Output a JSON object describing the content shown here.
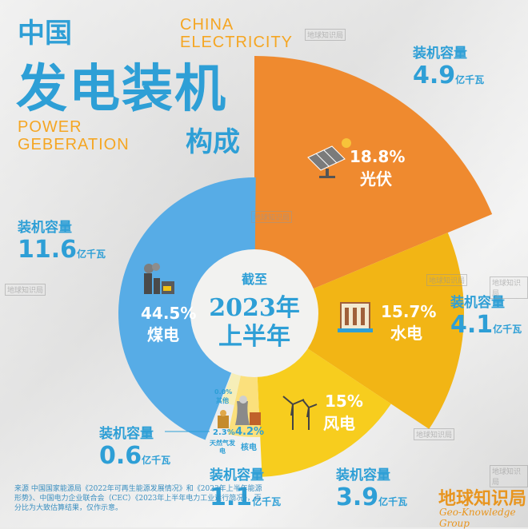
{
  "header": {
    "title_small": "中国",
    "title_big": "发电装机",
    "title_sub": "构成",
    "en_line1": "CHINA",
    "en_line2": "ELECTRICITY",
    "en_line3": "POWER",
    "en_line4": "GEBERATION"
  },
  "center": {
    "line1": "截至",
    "line2": "2023年",
    "line3": "上半年"
  },
  "chart_data": {
    "type": "pie",
    "title": "中国发电装机构成",
    "subtitle": "截至2023年上半年",
    "unit": "亿千瓦",
    "series": [
      {
        "name": "光伏",
        "percent": "18.8%",
        "value": 18.8,
        "capacity_label": "装机容量",
        "capacity": "4.9",
        "color": "#ef8a2f"
      },
      {
        "name": "水电",
        "percent": "15.7%",
        "value": 15.7,
        "capacity_label": "装机容量",
        "capacity": "4.1",
        "color": "#f2b515"
      },
      {
        "name": "风电",
        "percent": "15%",
        "value": 15.0,
        "capacity_label": "装机容量",
        "capacity": "3.9",
        "color": "#f7cd1e"
      },
      {
        "name": "核电",
        "percent": "4.2%",
        "value": 4.2,
        "capacity_label": "装机容量",
        "capacity": "1.1",
        "color": "#fbe07c"
      },
      {
        "name": "天然气发电",
        "percent": "2.3%",
        "value": 2.3,
        "capacity_label": "装机容量",
        "capacity": "0.6",
        "color": "#f6eeb8"
      },
      {
        "name": "其他",
        "percent": "0.0%",
        "value": 0.0,
        "color": "#e8eef2"
      },
      {
        "name": "煤电",
        "percent": "44.5%",
        "value": 44.5,
        "capacity_label": "装机容量",
        "capacity": "11.6",
        "color": "#57ace6"
      }
    ]
  },
  "labels": {
    "solar_name": "光伏",
    "hydro_name": "水电",
    "wind_name": "风电",
    "nuclear_name": "核电",
    "gas_name": "天然气发电",
    "other_name": "其他",
    "coal_name": "煤电"
  },
  "source": "来源 中国国家能源局《2022年可再生能源发展情况》和《2023年上半年能源形势》、中国电力企业联合会（CEC）《2023年上半年电力工业运行简况》，百分比为大致估算结果，仅作示意。",
  "brand": {
    "cn": "地球知识局",
    "en": "Geo-Knowledge Group"
  },
  "watermark": "地球知识局"
}
